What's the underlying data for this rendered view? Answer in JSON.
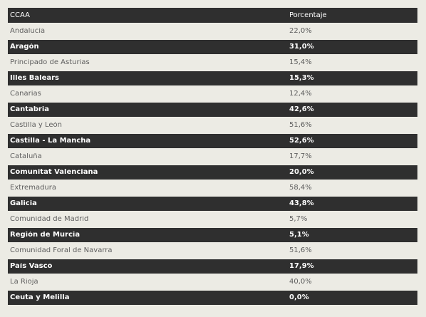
{
  "table": {
    "headers": {
      "ccaa": "CCAA",
      "porcentaje": "Porcentaje"
    },
    "rows": [
      {
        "ccaa": "Andalucía",
        "porcentaje": "22,0%"
      },
      {
        "ccaa": "Aragón",
        "porcentaje": "31,0%"
      },
      {
        "ccaa": "Principado de Asturias",
        "porcentaje": "15,4%"
      },
      {
        "ccaa": "Illes Balears",
        "porcentaje": "15,3%"
      },
      {
        "ccaa": "Canarias",
        "porcentaje": "12,4%"
      },
      {
        "ccaa": "Cantabria",
        "porcentaje": "42,6%"
      },
      {
        "ccaa": "Castilla y León",
        "porcentaje": "51,6%"
      },
      {
        "ccaa": "Castilla - La Mancha",
        "porcentaje": "52,6%"
      },
      {
        "ccaa": "Cataluña",
        "porcentaje": "17,7%"
      },
      {
        "ccaa": "Comunitat Valenciana",
        "porcentaje": "20,0%"
      },
      {
        "ccaa": "Extremadura",
        "porcentaje": "58,4%"
      },
      {
        "ccaa": "Galicia",
        "porcentaje": "43,8%"
      },
      {
        "ccaa": "Comunidad de Madrid",
        "porcentaje": "5,7%"
      },
      {
        "ccaa": "Región de Murcia",
        "porcentaje": "5,1%"
      },
      {
        "ccaa": "Comunidad Foral de Navarra",
        "porcentaje": "51,6%"
      },
      {
        "ccaa": "País Vasco",
        "porcentaje": "17,9%"
      },
      {
        "ccaa": "La Rioja",
        "porcentaje": "40,0%"
      },
      {
        "ccaa": "Ceuta y Melilla",
        "porcentaje": "0,0%"
      }
    ]
  },
  "colors": {
    "page_background": "#ecebe4",
    "dark_row": "#2f2f2f",
    "light_text": "#5f5f5f",
    "dark_text": "#ffffff"
  }
}
